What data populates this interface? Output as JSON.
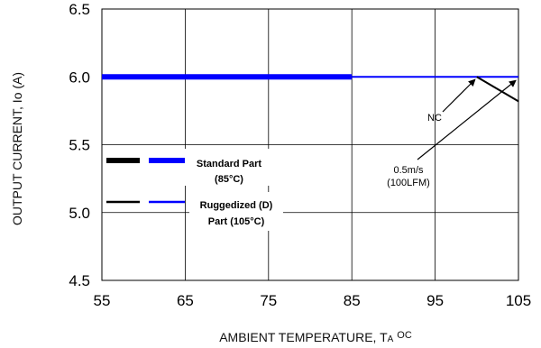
{
  "chart_data": {
    "type": "line",
    "xlabel": "AMBIENT TEMPERATURE, T",
    "xlabel_sub": "A",
    "xlabel_unit": "OC",
    "ylabel": "OUTPUT CURRENT, Io  (A)",
    "xlim": [
      55,
      105
    ],
    "ylim": [
      4.5,
      6.5
    ],
    "xticks": [
      55,
      65,
      75,
      85,
      95,
      105
    ],
    "yticks": [
      "4.5",
      "5.0",
      "5.5",
      "6.0",
      "6.5"
    ],
    "grid": true,
    "series": [
      {
        "name": "Standard Part (85°C)",
        "color": "#0000ff",
        "style": "thick",
        "x": [
          55,
          85
        ],
        "y": [
          6.0,
          6.0
        ]
      },
      {
        "name": "Ruggedized (D) Part (105°C)",
        "color": "#0000ff",
        "style": "thin",
        "x": [
          85,
          105
        ],
        "y": [
          6.0,
          6.0
        ]
      },
      {
        "name": "",
        "color": "#000000",
        "style": "thin",
        "x": [
          100,
          105
        ],
        "y": [
          6.0,
          5.82
        ]
      }
    ],
    "legend": {
      "placement": "left-middle",
      "entries": [
        {
          "line1": "Standard Part",
          "line2": "(85°C)",
          "style": "thick"
        },
        {
          "line1": "Ruggedized (D)",
          "line2": "Part (105°C)",
          "style": "thin"
        }
      ]
    },
    "annotations": [
      {
        "lines": [
          "NC"
        ],
        "points_to": {
          "x": 100,
          "y": 6.0
        }
      },
      {
        "lines": [
          "0.5m/s",
          "(100LFM)"
        ],
        "points_to": {
          "x": 105,
          "y": 6.0
        }
      }
    ]
  }
}
